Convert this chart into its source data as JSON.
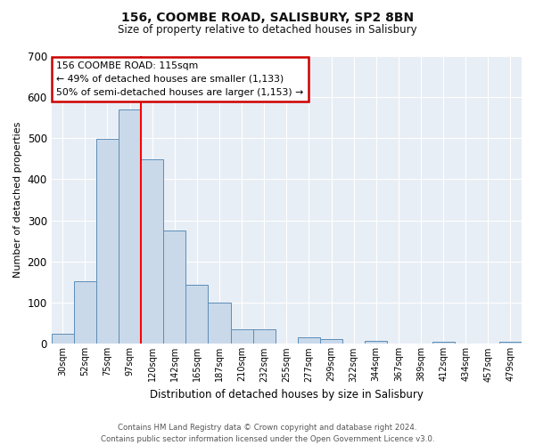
{
  "title": "156, COOMBE ROAD, SALISBURY, SP2 8BN",
  "subtitle": "Size of property relative to detached houses in Salisbury",
  "xlabel": "Distribution of detached houses by size in Salisbury",
  "ylabel": "Number of detached properties",
  "bar_color": "#c9d9ea",
  "bar_edge_color": "#5b8db8",
  "categories": [
    "30sqm",
    "52sqm",
    "75sqm",
    "97sqm",
    "120sqm",
    "142sqm",
    "165sqm",
    "187sqm",
    "210sqm",
    "232sqm",
    "255sqm",
    "277sqm",
    "299sqm",
    "322sqm",
    "344sqm",
    "367sqm",
    "389sqm",
    "412sqm",
    "434sqm",
    "457sqm",
    "479sqm"
  ],
  "values": [
    25,
    153,
    498,
    570,
    448,
    275,
    143,
    100,
    35,
    35,
    0,
    15,
    12,
    0,
    8,
    0,
    0,
    5,
    0,
    0,
    5
  ],
  "ylim": [
    0,
    700
  ],
  "yticks": [
    0,
    100,
    200,
    300,
    400,
    500,
    600,
    700
  ],
  "vline_color": "red",
  "annotation_title": "156 COOMBE ROAD: 115sqm",
  "annotation_line1": "← 49% of detached houses are smaller (1,133)",
  "annotation_line2": "50% of semi-detached houses are larger (1,153) →",
  "footer_line1": "Contains HM Land Registry data © Crown copyright and database right 2024.",
  "footer_line2": "Contains public sector information licensed under the Open Government Licence v3.0.",
  "background_color": "#ffffff",
  "plot_bg_color": "#e8eef5",
  "grid_color": "#ffffff",
  "annotation_box_color": "#ffffff",
  "annotation_box_edge": "#cc0000"
}
